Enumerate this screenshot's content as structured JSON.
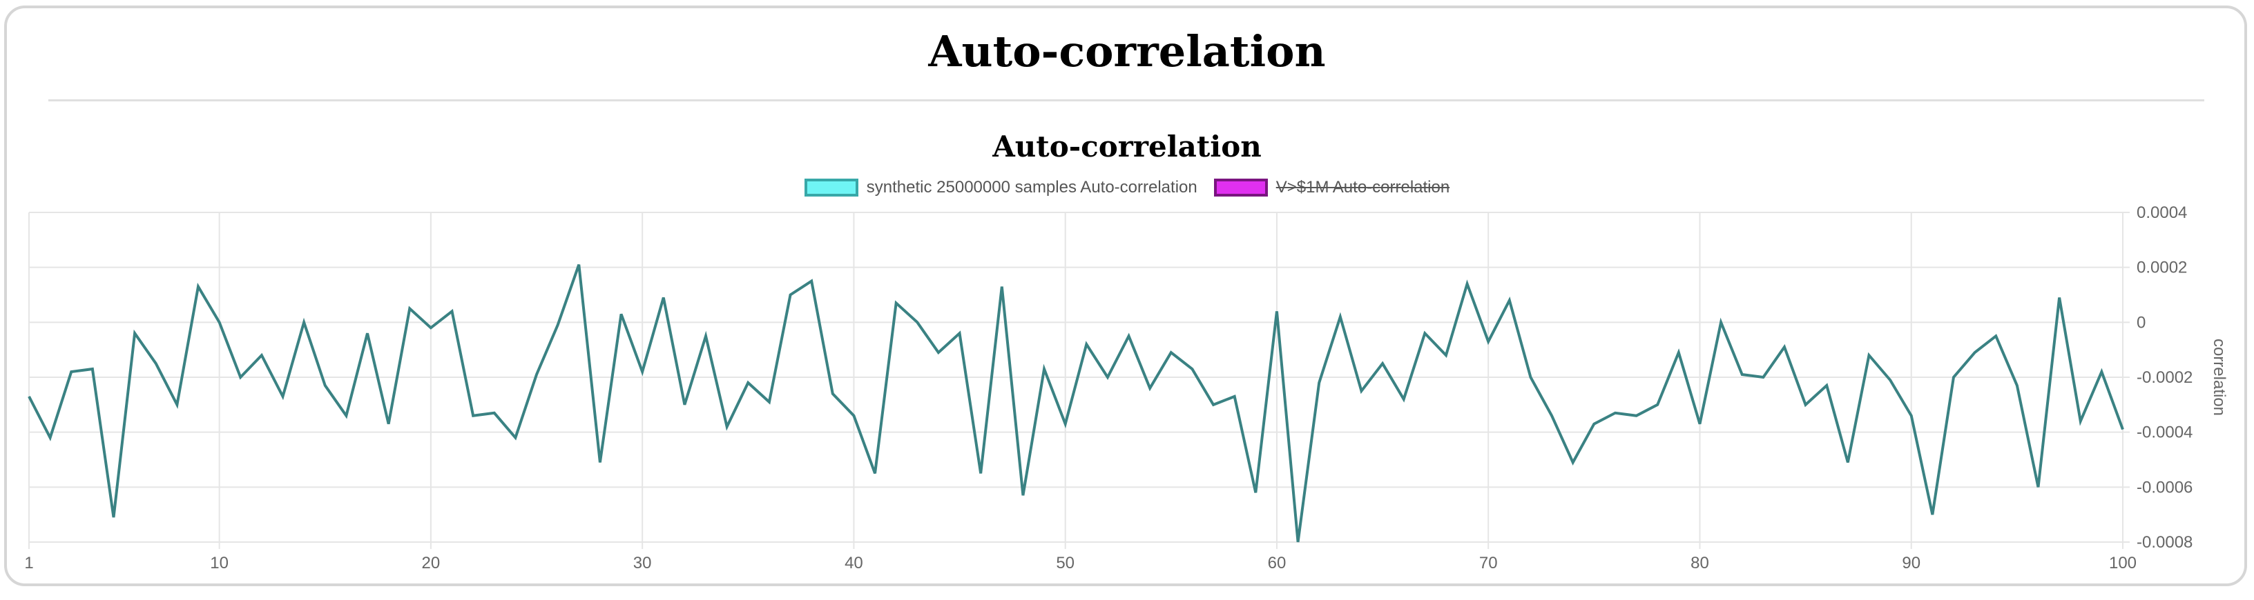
{
  "page": {
    "title": "Auto-correlation"
  },
  "chart_data": {
    "type": "line",
    "title": "Auto-correlation",
    "xlabel": "",
    "ylabel": "correlation",
    "y_axis_position": "right",
    "xlim": [
      1,
      100
    ],
    "ylim": [
      -0.0008,
      0.0004
    ],
    "x_ticks": [
      1,
      10,
      20,
      30,
      40,
      50,
      60,
      70,
      80,
      90,
      100
    ],
    "y_ticks": [
      0.0004,
      0.0002,
      0,
      -0.0002,
      -0.0004,
      -0.0006,
      -0.0008
    ],
    "y_tick_labels": [
      "0.0004",
      "0.0002",
      "0",
      "-0.0002",
      "-0.0004",
      "-0.0006",
      "-0.0008"
    ],
    "grid": true,
    "legend_position": "top-center",
    "colors": {
      "line": "#3a8283",
      "swatch1_fill": "#6ff5f5",
      "swatch1_border": "#38a8a8",
      "swatch2_fill": "#e030f0",
      "swatch2_border": "#7a1580",
      "grid": "#e5e5e5"
    },
    "series": [
      {
        "name": "synthetic 25000000 samples Auto-correlation",
        "hidden": false,
        "x": [
          1,
          2,
          3,
          4,
          5,
          6,
          7,
          8,
          9,
          10,
          11,
          12,
          13,
          14,
          15,
          16,
          17,
          18,
          19,
          20,
          21,
          22,
          23,
          24,
          25,
          26,
          27,
          28,
          29,
          30,
          31,
          32,
          33,
          34,
          35,
          36,
          37,
          38,
          39,
          40,
          41,
          42,
          43,
          44,
          45,
          46,
          47,
          48,
          49,
          50,
          51,
          52,
          53,
          54,
          55,
          56,
          57,
          58,
          59,
          60,
          61,
          62,
          63,
          64,
          65,
          66,
          67,
          68,
          69,
          70,
          71,
          72,
          73,
          74,
          75,
          76,
          77,
          78,
          79,
          80,
          81,
          82,
          83,
          84,
          85,
          86,
          87,
          88,
          89,
          90,
          91,
          92,
          93,
          94,
          95,
          96,
          97,
          98,
          99,
          100
        ],
        "values": [
          -0.00027,
          -0.00042,
          -0.00018,
          -0.00017,
          -0.00071,
          -4e-05,
          -0.00015,
          -0.0003,
          0.00013,
          0.0,
          -0.0002,
          -0.00012,
          -0.00027,
          0.0,
          -0.00023,
          -0.00034,
          -4e-05,
          -0.00037,
          5e-05,
          -2e-05,
          4e-05,
          -0.00034,
          -0.00033,
          -0.00042,
          -0.00019,
          -1e-05,
          0.00021,
          -0.00051,
          3e-05,
          -0.00018,
          9e-05,
          -0.0003,
          -5e-05,
          -0.00038,
          -0.00022,
          -0.00029,
          0.0001,
          0.00015,
          -0.00026,
          -0.00034,
          -0.00055,
          7e-05,
          0.0,
          -0.00011,
          -4e-05,
          -0.00055,
          0.00013,
          -0.00063,
          -0.00017,
          -0.00037,
          -8e-05,
          -0.0002,
          -5e-05,
          -0.00024,
          -0.00011,
          -0.00017,
          -0.0003,
          -0.00027,
          -0.00062,
          4e-05,
          -0.0008,
          -0.00022,
          2e-05,
          -0.00025,
          -0.00015,
          -0.00028,
          -4e-05,
          -0.00012,
          0.00014,
          -7e-05,
          8e-05,
          -0.0002,
          -0.00034,
          -0.00051,
          -0.00037,
          -0.00033,
          -0.00034,
          -0.0003,
          -0.00011,
          -0.00037,
          0.0,
          -0.00019,
          -0.0002,
          -9e-05,
          -0.0003,
          -0.00023,
          -0.00051,
          -0.00012,
          -0.00021,
          -0.00034,
          -0.0007,
          -0.0002,
          -0.00011,
          -5e-05,
          -0.00023,
          -0.0006,
          9e-05,
          -0.00036,
          -0.00018,
          -0.00039
        ]
      },
      {
        "name": "V>$1M  Auto-correlation",
        "hidden": true,
        "values": []
      }
    ]
  }
}
